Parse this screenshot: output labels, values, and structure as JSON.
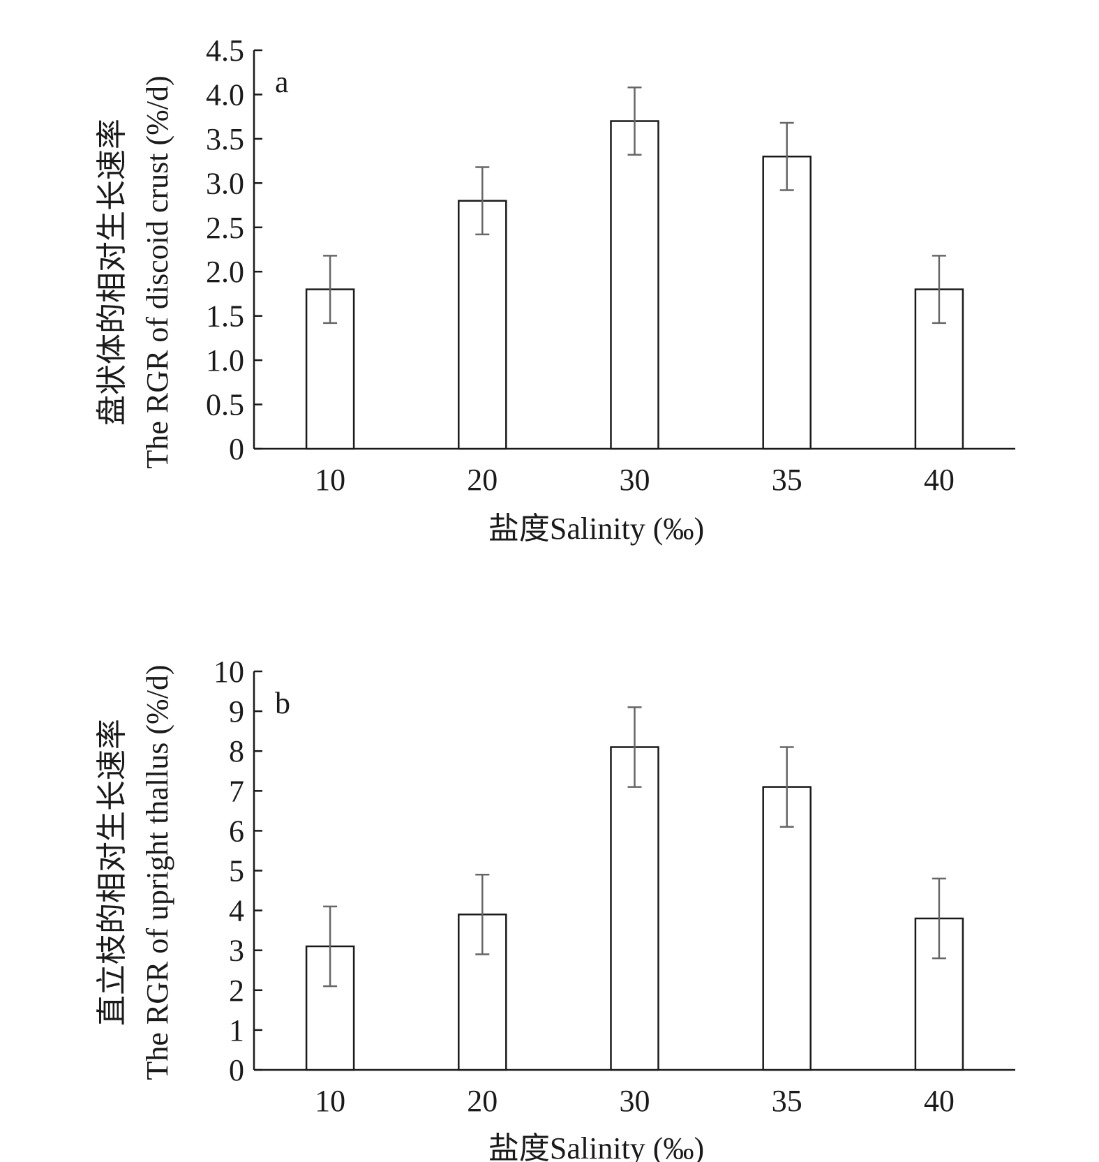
{
  "chart_data": [
    {
      "type": "bar",
      "panel_label": "a",
      "categories": [
        "10",
        "20",
        "30",
        "35",
        "40"
      ],
      "values": [
        1.8,
        2.8,
        3.7,
        3.3,
        1.8
      ],
      "errors": [
        0.38,
        0.38,
        0.38,
        0.38,
        0.38
      ],
      "ylim": [
        0,
        4.5
      ],
      "yticks": [
        "0",
        "0.5",
        "1.0",
        "1.5",
        "2.0",
        "2.5",
        "3.0",
        "3.5",
        "4.0",
        "4.5"
      ],
      "xlabel": "盐度Salinity (‰)",
      "ylabel_cn": "盘状体的相对生长速率",
      "ylabel_en": "The RGR of discoid crust (%/d)",
      "grid": false,
      "legend": "none"
    },
    {
      "type": "bar",
      "panel_label": "b",
      "categories": [
        "10",
        "20",
        "30",
        "35",
        "40"
      ],
      "values": [
        3.1,
        3.9,
        8.1,
        7.1,
        3.8
      ],
      "errors": [
        1.0,
        1.0,
        1.0,
        1.0,
        1.0
      ],
      "ylim": [
        0,
        10
      ],
      "yticks": [
        "0",
        "1",
        "2",
        "3",
        "4",
        "5",
        "6",
        "7",
        "8",
        "9",
        "10"
      ],
      "xlabel": "盐度Salinity (‰)",
      "ylabel_cn": "直立枝的相对生长速率",
      "ylabel_en": "The RGR of upright thallus (%/d)",
      "grid": false,
      "legend": "none"
    }
  ],
  "colors": {
    "axis": "#1a1a1a",
    "bar_fill": "#ffffff",
    "bar_edge": "#1a1a1a",
    "error_bar": "#666666"
  }
}
